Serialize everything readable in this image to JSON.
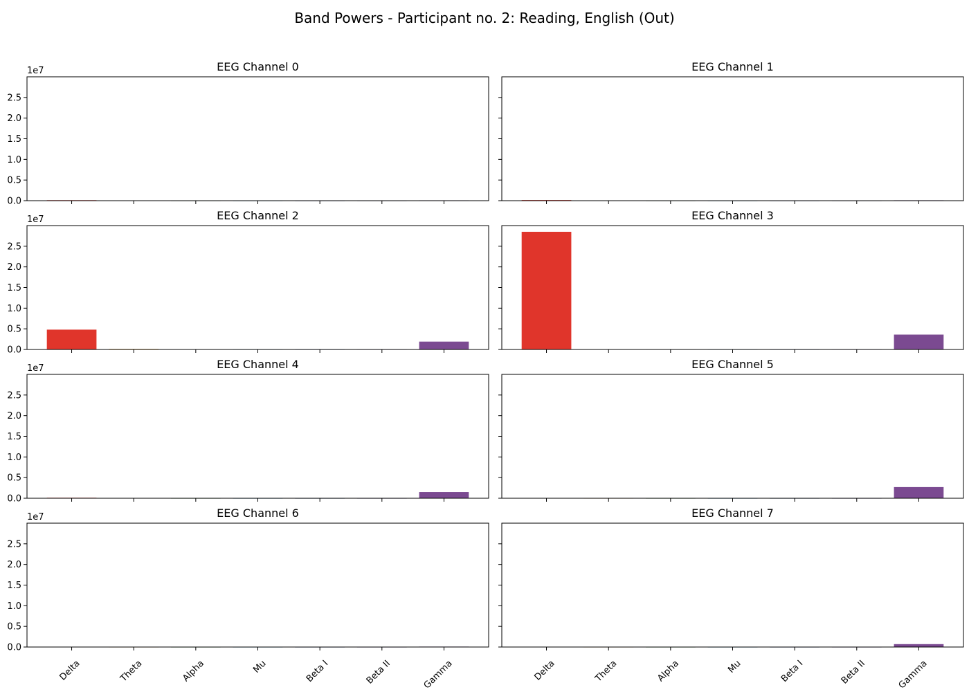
{
  "figure": {
    "title": "Band Powers - Participant no. 2: Reading, English (Out)"
  },
  "chart_data": {
    "type": "bar",
    "layout": "4x2 grid of subplots, shared y-axis",
    "categories": [
      "Delta",
      "Theta",
      "Alpha",
      "Mu",
      "Beta I",
      "Beta II",
      "Gamma"
    ],
    "bar_colors": [
      "#e0352b",
      "#f2a93b",
      "#4a9e4a",
      "#2e86c1",
      "#1f4e8c",
      "#6c5ba7",
      "#7b4a91"
    ],
    "ylim": [
      0,
      30000000
    ],
    "yticks": [
      0,
      5000000,
      10000000,
      15000000,
      20000000,
      25000000
    ],
    "ytick_labels": [
      "0.0",
      "0.5",
      "1.0",
      "1.5",
      "2.0",
      "2.5"
    ],
    "y_offset_label": "1e7",
    "grid": false,
    "legend": "none",
    "series": [
      {
        "name": "EEG Channel 0",
        "values": [
          120000,
          20000,
          5000,
          3000,
          3000,
          4000,
          90000
        ]
      },
      {
        "name": "EEG Channel 1",
        "values": [
          150000,
          20000,
          5000,
          3000,
          3000,
          4000,
          100000
        ]
      },
      {
        "name": "EEG Channel 2",
        "values": [
          4800000,
          130000,
          20000,
          10000,
          8000,
          10000,
          1900000
        ]
      },
      {
        "name": "EEG Channel 3",
        "values": [
          28500000,
          60000,
          15000,
          10000,
          8000,
          10000,
          3600000
        ]
      },
      {
        "name": "EEG Channel 4",
        "values": [
          120000,
          20000,
          5000,
          3000,
          3000,
          4000,
          1500000
        ]
      },
      {
        "name": "EEG Channel 5",
        "values": [
          30000,
          10000,
          5000,
          3000,
          3000,
          4000,
          2700000
        ]
      },
      {
        "name": "EEG Channel 6",
        "values": [
          20000,
          8000,
          4000,
          3000,
          3000,
          4000,
          100000
        ]
      },
      {
        "name": "EEG Channel 7",
        "values": [
          20000,
          8000,
          4000,
          3000,
          3000,
          4000,
          700000
        ]
      }
    ]
  }
}
